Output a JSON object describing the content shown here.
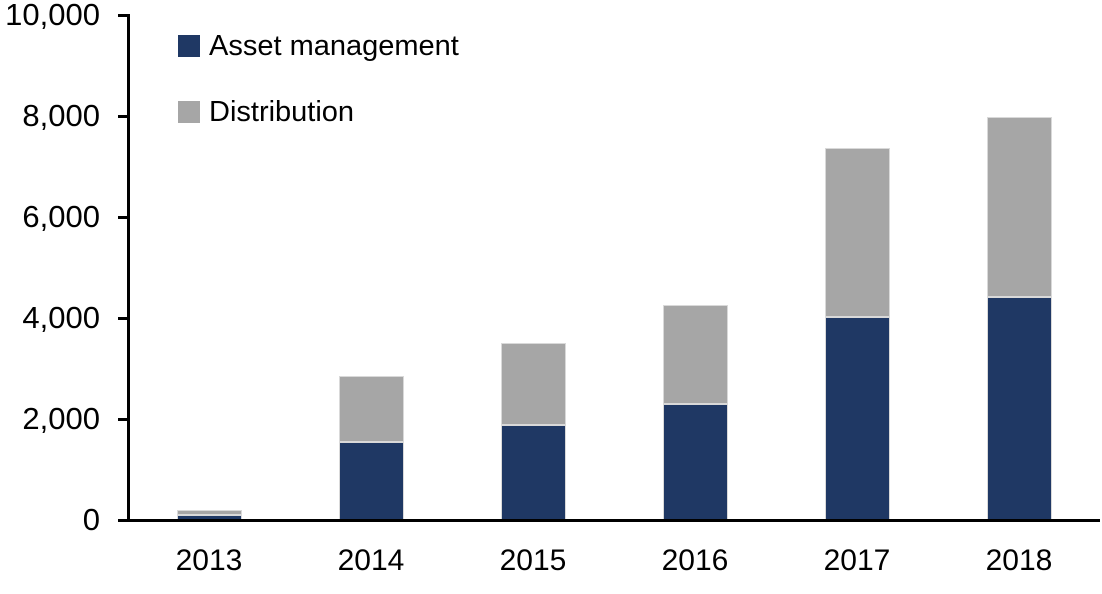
{
  "chart_data": {
    "type": "bar",
    "stacked": true,
    "title": "",
    "xlabel": "",
    "ylabel": "",
    "categories": [
      "2013",
      "2014",
      "2015",
      "2016",
      "2017",
      "2018"
    ],
    "series": [
      {
        "name": "Asset management",
        "color": "#1F3864",
        "values": [
          100,
          1550,
          1890,
          2300,
          4020,
          4420
        ]
      },
      {
        "name": "Distribution",
        "color": "#A6A6A6",
        "values": [
          90,
          1300,
          1610,
          1950,
          3350,
          3560
        ]
      }
    ],
    "totals": [
      190,
      2850,
      3500,
      4250,
      7370,
      7980
    ],
    "ylim": [
      0,
      10000
    ],
    "ytick_step": 2000,
    "yticks": [
      "0",
      "2,000",
      "4,000",
      "6,000",
      "8,000",
      "10,000"
    ],
    "grid": false,
    "legend_position": "top-left-inside",
    "axis_color": "#000000",
    "bar_outline_color": "#D9D9D9",
    "background_color": "#FFFFFF"
  }
}
